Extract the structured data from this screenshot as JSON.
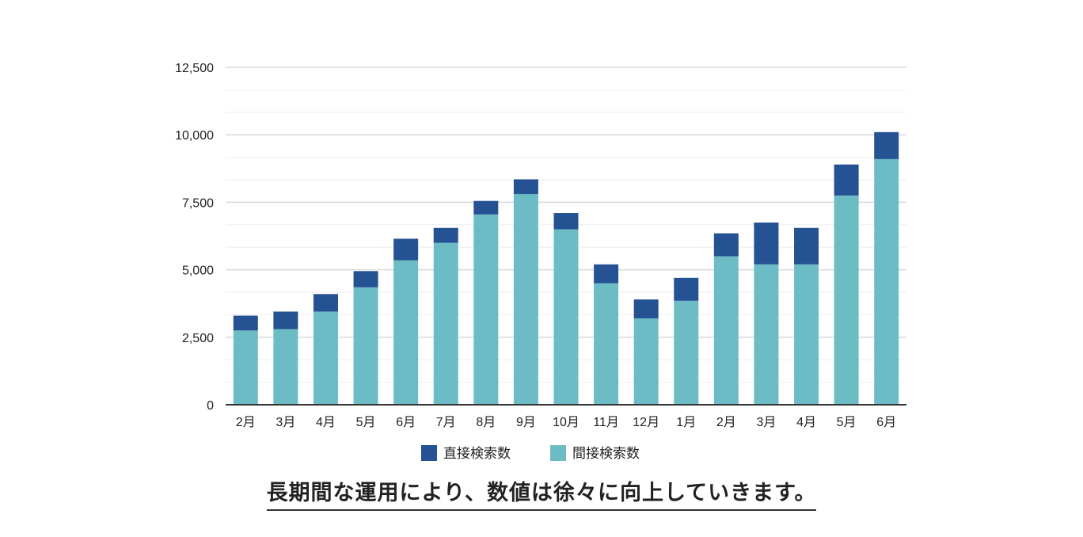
{
  "chart_data": {
    "type": "bar",
    "stacked": true,
    "title": "",
    "xlabel": "",
    "ylabel": "",
    "ylim": [
      0,
      12500
    ],
    "yticks": [
      0,
      2500,
      5000,
      7500,
      10000,
      12500
    ],
    "ytick_labels": [
      "0",
      "2,500",
      "5,000",
      "7,500",
      "10,000",
      "12,500"
    ],
    "grid": true,
    "legend_position": "bottom",
    "categories": [
      "2月",
      "3月",
      "4月",
      "5月",
      "6月",
      "7月",
      "8月",
      "9月",
      "10月",
      "11月",
      "12月",
      "1月",
      "2月",
      "3月",
      "4月",
      "5月",
      "6月"
    ],
    "series": [
      {
        "name": "間接検索数",
        "color": "#6cbcc6",
        "values": [
          2750,
          2800,
          3450,
          4350,
          5350,
          6000,
          7050,
          7800,
          6500,
          4500,
          3200,
          3850,
          5500,
          5200,
          5200,
          7750,
          9100
        ]
      },
      {
        "name": "直接検索数",
        "color": "#245293",
        "values": [
          550,
          650,
          650,
          600,
          800,
          550,
          500,
          550,
          600,
          700,
          700,
          850,
          850,
          1550,
          1350,
          1150,
          1000
        ]
      }
    ],
    "legend_order": [
      "直接検索数",
      "間接検索数"
    ]
  },
  "caption": "長期間な運用により、数値は徐々に向上していきます。",
  "colors": {
    "gridline": "#d9d9d9",
    "axis": "#333333",
    "tick_text": "#222222"
  }
}
